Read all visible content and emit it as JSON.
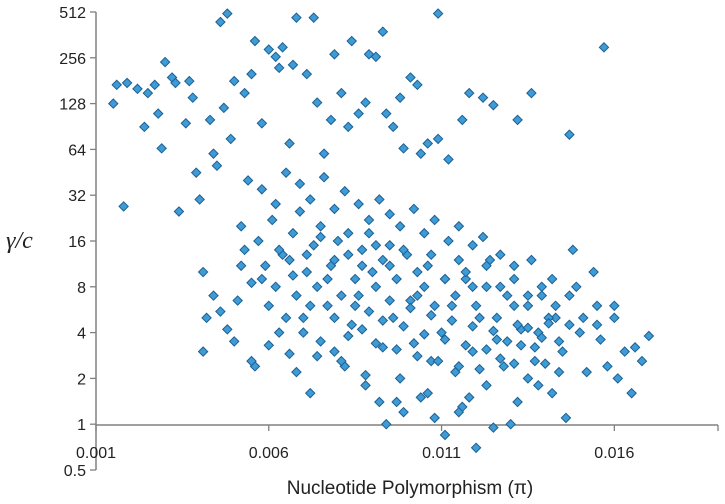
{
  "chart_data": {
    "type": "scatter",
    "title": "",
    "xlabel": "Nucleotide Polymorphism (π)",
    "ylabel": "γ/c",
    "x_scale": "linear",
    "y_scale": "log2",
    "xlim": [
      0.001,
      0.019
    ],
    "ylim": [
      0.5,
      512
    ],
    "x_ticks": [
      "0.001",
      "0.006",
      "0.011",
      "0.016"
    ],
    "y_ticks": [
      "0.5",
      "1",
      "2",
      "4",
      "8",
      "16",
      "32",
      "64",
      "128",
      "256",
      "512"
    ],
    "grid": false,
    "legend": "none",
    "marker": "diamond",
    "marker_color": "#3d9bd6",
    "marker_edge_color": "#1f5f91",
    "axis_color": "#808080",
    "series": [
      {
        "points": [
          [
            0.0015,
            128
          ],
          [
            0.0016,
            170
          ],
          [
            0.0022,
            160
          ],
          [
            0.0024,
            90
          ],
          [
            0.0027,
            170
          ],
          [
            0.0028,
            110
          ],
          [
            0.003,
            240
          ],
          [
            0.0032,
            190
          ],
          [
            0.0034,
            25
          ],
          [
            0.0036,
            95
          ],
          [
            0.0038,
            140
          ],
          [
            0.0039,
            45
          ],
          [
            0.004,
            30
          ],
          [
            0.0041,
            10
          ],
          [
            0.0042,
            5
          ],
          [
            0.0044,
            60
          ],
          [
            0.0045,
            50
          ],
          [
            0.0046,
            440
          ],
          [
            0.0048,
            500
          ],
          [
            0.005,
            180
          ],
          [
            0.0052,
            11
          ],
          [
            0.0055,
            200
          ],
          [
            0.0056,
            330
          ],
          [
            0.006,
            290
          ],
          [
            0.0062,
            260
          ],
          [
            0.0064,
            300
          ],
          [
            0.0068,
            470
          ],
          [
            0.0073,
            470
          ],
          [
            0.0079,
            270
          ],
          [
            0.0084,
            330
          ],
          [
            0.0089,
            270
          ],
          [
            0.0093,
            380
          ],
          [
            0.0098,
            140
          ],
          [
            0.0103,
            170
          ],
          [
            0.0109,
            500
          ],
          [
            0.0118,
            150
          ],
          [
            0.0125,
            125
          ],
          [
            0.0132,
            100
          ],
          [
            0.0147,
            80
          ],
          [
            0.0157,
            300
          ],
          [
            0.0018,
            27
          ],
          [
            0.0019,
            175
          ],
          [
            0.0025,
            150
          ],
          [
            0.0029,
            65
          ],
          [
            0.0033,
            175
          ],
          [
            0.0037,
            180
          ],
          [
            0.0043,
            100
          ],
          [
            0.0047,
            120
          ],
          [
            0.0049,
            75
          ],
          [
            0.0053,
            150
          ],
          [
            0.0058,
            95
          ],
          [
            0.0063,
            220
          ],
          [
            0.0066,
            70
          ],
          [
            0.0071,
            200
          ],
          [
            0.0076,
            60
          ],
          [
            0.0081,
            150
          ],
          [
            0.0086,
            110
          ],
          [
            0.0091,
            260
          ],
          [
            0.0096,
            90
          ],
          [
            0.0101,
            190
          ],
          [
            0.0106,
            70
          ],
          [
            0.0112,
            55
          ],
          [
            0.0122,
            140
          ],
          [
            0.0136,
            150
          ],
          [
            0.0067,
            230
          ],
          [
            0.0074,
            130
          ],
          [
            0.0078,
            100
          ],
          [
            0.0083,
            90
          ],
          [
            0.0088,
            130
          ],
          [
            0.0094,
            110
          ],
          [
            0.0099,
            65
          ],
          [
            0.0104,
            60
          ],
          [
            0.0109,
            75
          ],
          [
            0.0116,
            100
          ],
          [
            0.0041,
            3
          ],
          [
            0.0044,
            7
          ],
          [
            0.0046,
            5.5
          ],
          [
            0.005,
            3.5
          ],
          [
            0.0053,
            14
          ],
          [
            0.0056,
            2.4
          ],
          [
            0.0058,
            9
          ],
          [
            0.006,
            6
          ],
          [
            0.0063,
            4
          ],
          [
            0.0066,
            12
          ],
          [
            0.0068,
            2.2
          ],
          [
            0.007,
            5
          ],
          [
            0.0072,
            1.6
          ],
          [
            0.0074,
            8
          ],
          [
            0.0077,
            6
          ],
          [
            0.0079,
            3
          ],
          [
            0.0082,
            2.4
          ],
          [
            0.0084,
            4.5
          ],
          [
            0.0086,
            7
          ],
          [
            0.0088,
            2.1
          ],
          [
            0.009,
            10
          ],
          [
            0.0092,
            1.4
          ],
          [
            0.0093,
            3.2
          ],
          [
            0.0094,
            1
          ],
          [
            0.0096,
            5
          ],
          [
            0.0098,
            2
          ],
          [
            0.0099,
            1.2
          ],
          [
            0.0101,
            6.5
          ],
          [
            0.0102,
            3.4
          ],
          [
            0.0104,
            1.5
          ],
          [
            0.0105,
            8
          ],
          [
            0.0107,
            2.6
          ],
          [
            0.0108,
            1.1
          ],
          [
            0.011,
            4
          ],
          [
            0.0111,
            0.85
          ],
          [
            0.0113,
            6
          ],
          [
            0.0114,
            2.2
          ],
          [
            0.0116,
            1.3
          ],
          [
            0.0117,
            9
          ],
          [
            0.0119,
            3
          ],
          [
            0.012,
            0.7
          ],
          [
            0.0121,
            5
          ],
          [
            0.0123,
            1.8
          ],
          [
            0.0124,
            12
          ],
          [
            0.0126,
            3.6
          ],
          [
            0.0128,
            2.4
          ],
          [
            0.013,
            1
          ],
          [
            0.0131,
            6
          ],
          [
            0.0133,
            4.2
          ],
          [
            0.0135,
            2
          ],
          [
            0.0137,
            3.2
          ],
          [
            0.0139,
            7
          ],
          [
            0.014,
            2.5
          ],
          [
            0.0142,
            1.6
          ],
          [
            0.0143,
            5
          ],
          [
            0.0145,
            3
          ],
          [
            0.0146,
            1.1
          ],
          [
            0.0148,
            14
          ],
          [
            0.015,
            4
          ],
          [
            0.0152,
            2.2
          ],
          [
            0.0154,
            10
          ],
          [
            0.0156,
            3.6
          ],
          [
            0.0158,
            2.4
          ],
          [
            0.016,
            6
          ],
          [
            0.0161,
            2
          ],
          [
            0.0163,
            3
          ],
          [
            0.0165,
            1.6
          ],
          [
            0.017,
            3.8
          ],
          [
            0.0125,
            0.95
          ],
          [
            0.0118,
            1.5
          ],
          [
            0.0052,
            20
          ],
          [
            0.0057,
            16
          ],
          [
            0.0061,
            22
          ],
          [
            0.0064,
            13
          ],
          [
            0.0067,
            18
          ],
          [
            0.0069,
            25
          ],
          [
            0.0071,
            10
          ],
          [
            0.0073,
            15
          ],
          [
            0.0075,
            20
          ],
          [
            0.0078,
            11
          ],
          [
            0.008,
            16
          ],
          [
            0.0083,
            13
          ],
          [
            0.0085,
            9
          ],
          [
            0.0087,
            14
          ],
          [
            0.0089,
            18
          ],
          [
            0.0091,
            8
          ],
          [
            0.0093,
            12
          ],
          [
            0.0095,
            15
          ],
          [
            0.0097,
            9
          ],
          [
            0.01,
            13
          ],
          [
            0.0103,
            7
          ],
          [
            0.0106,
            11
          ],
          [
            0.0108,
            6
          ],
          [
            0.0111,
            9
          ],
          [
            0.0114,
            7
          ],
          [
            0.0117,
            10
          ],
          [
            0.012,
            6
          ],
          [
            0.0123,
            8
          ],
          [
            0.0126,
            5
          ],
          [
            0.0129,
            7
          ],
          [
            0.0132,
            4.5
          ],
          [
            0.0135,
            6
          ],
          [
            0.0138,
            4
          ],
          [
            0.0141,
            5
          ],
          [
            0.0144,
            3.5
          ],
          [
            0.0147,
            4.5
          ],
          [
            0.0062,
            8
          ],
          [
            0.0065,
            5
          ],
          [
            0.0068,
            7
          ],
          [
            0.007,
            4
          ],
          [
            0.0072,
            6
          ],
          [
            0.0075,
            3.5
          ],
          [
            0.0077,
            9
          ],
          [
            0.0079,
            5
          ],
          [
            0.0081,
            7
          ],
          [
            0.0083,
            3.8
          ],
          [
            0.0085,
            6
          ],
          [
            0.0087,
            4.2
          ],
          [
            0.0089,
            5.5
          ],
          [
            0.0091,
            3.4
          ],
          [
            0.0093,
            4.8
          ],
          [
            0.0095,
            6.5
          ],
          [
            0.0097,
            3.1
          ],
          [
            0.0099,
            4.4
          ],
          [
            0.0101,
            5.8
          ],
          [
            0.0103,
            2.8
          ],
          [
            0.0105,
            3.9
          ],
          [
            0.0107,
            5.2
          ],
          [
            0.0109,
            2.6
          ],
          [
            0.0111,
            3.6
          ],
          [
            0.0113,
            4.8
          ],
          [
            0.0115,
            2.4
          ],
          [
            0.0117,
            3.3
          ],
          [
            0.0119,
            4.4
          ],
          [
            0.0121,
            2.3
          ],
          [
            0.0123,
            3.1
          ],
          [
            0.0125,
            4.1
          ],
          [
            0.0127,
            2.7
          ],
          [
            0.0129,
            3.5
          ],
          [
            0.0131,
            2.5
          ],
          [
            0.0133,
            3.3
          ],
          [
            0.0135,
            4.3
          ],
          [
            0.0137,
            2.6
          ],
          [
            0.0139,
            3.7
          ],
          [
            0.0141,
            4.6
          ],
          [
            0.0054,
            40
          ],
          [
            0.0058,
            35
          ],
          [
            0.0062,
            28
          ],
          [
            0.0065,
            45
          ],
          [
            0.0069,
            38
          ],
          [
            0.0072,
            30
          ],
          [
            0.0076,
            42
          ],
          [
            0.0079,
            26
          ],
          [
            0.0082,
            34
          ],
          [
            0.0086,
            28
          ],
          [
            0.0089,
            22
          ],
          [
            0.0092,
            30
          ],
          [
            0.0095,
            24
          ],
          [
            0.0098,
            20
          ],
          [
            0.0102,
            26
          ],
          [
            0.0105,
            18
          ],
          [
            0.0108,
            22
          ],
          [
            0.0112,
            16
          ],
          [
            0.0115,
            20
          ],
          [
            0.0119,
            15
          ],
          [
            0.0122,
            17
          ],
          [
            0.0127,
            13
          ],
          [
            0.0131,
            11
          ],
          [
            0.0136,
            12
          ],
          [
            0.0142,
            9
          ],
          [
            0.0149,
            8
          ],
          [
            0.0155,
            6
          ],
          [
            0.016,
            5
          ],
          [
            0.0166,
            3.2
          ],
          [
            0.0168,
            2.6
          ],
          [
            0.0144,
            2.2
          ],
          [
            0.0138,
            1.8
          ],
          [
            0.0132,
            1.4
          ],
          [
            0.0115,
            1.2
          ],
          [
            0.0106,
            1.6
          ],
          [
            0.0097,
            1.4
          ],
          [
            0.0088,
            1.8
          ],
          [
            0.0081,
            2.6
          ],
          [
            0.0074,
            2.8
          ],
          [
            0.0066,
            2.9
          ],
          [
            0.006,
            3.3
          ],
          [
            0.0055,
            2.6
          ],
          [
            0.0048,
            4.2
          ],
          [
            0.0051,
            6.5
          ],
          [
            0.0055,
            8.5
          ],
          [
            0.0059,
            11
          ],
          [
            0.0063,
            14
          ],
          [
            0.0067,
            9.5
          ],
          [
            0.0071,
            13
          ],
          [
            0.0075,
            17
          ],
          [
            0.0079,
            12
          ],
          [
            0.0083,
            18
          ],
          [
            0.0087,
            11
          ],
          [
            0.0091,
            15
          ],
          [
            0.0095,
            11
          ],
          [
            0.0099,
            14
          ],
          [
            0.0103,
            10
          ],
          [
            0.0107,
            13
          ],
          [
            0.0111,
            9
          ],
          [
            0.0115,
            12
          ],
          [
            0.0119,
            8
          ],
          [
            0.0123,
            11
          ],
          [
            0.0127,
            8
          ],
          [
            0.0131,
            9
          ],
          [
            0.0135,
            7
          ],
          [
            0.0139,
            8
          ],
          [
            0.0143,
            6
          ],
          [
            0.0147,
            7
          ],
          [
            0.0151,
            5
          ],
          [
            0.0155,
            4.5
          ]
        ]
      }
    ]
  }
}
